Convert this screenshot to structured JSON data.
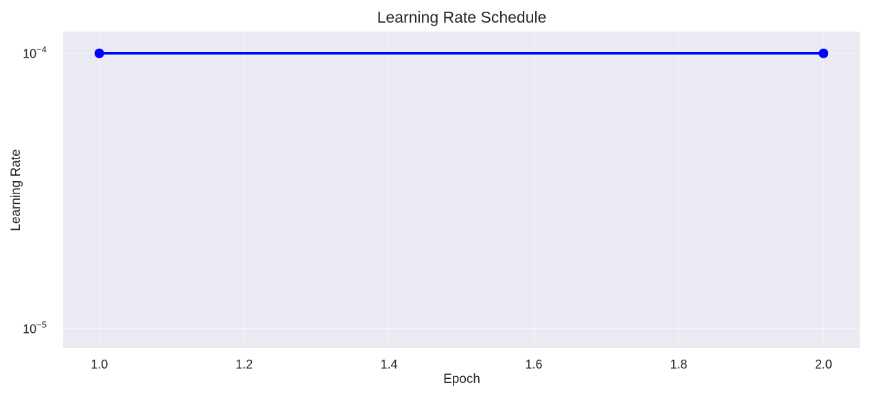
{
  "chart_data": {
    "type": "line",
    "title": "Learning Rate Schedule",
    "xlabel": "Epoch",
    "ylabel": "Learning Rate",
    "yscale": "log",
    "grid": true,
    "xlim": [
      0.95,
      2.05
    ],
    "ylim": [
      8.5e-06,
      0.00012
    ],
    "xticks": [
      1.0,
      1.2,
      1.4,
      1.6,
      1.8,
      2.0
    ],
    "xtick_labels": [
      "1.0",
      "1.2",
      "1.4",
      "1.6",
      "1.8",
      "2.0"
    ],
    "yticks": [
      1e-05,
      0.0001
    ],
    "ytick_labels": [
      {
        "base": "10",
        "exponent": "−5"
      },
      {
        "base": "10",
        "exponent": "−4"
      }
    ],
    "series": [
      {
        "x": [
          1.0,
          2.0
        ],
        "y": [
          0.0001,
          0.0001
        ],
        "color": "#0000ff",
        "marker": "circle"
      }
    ]
  }
}
